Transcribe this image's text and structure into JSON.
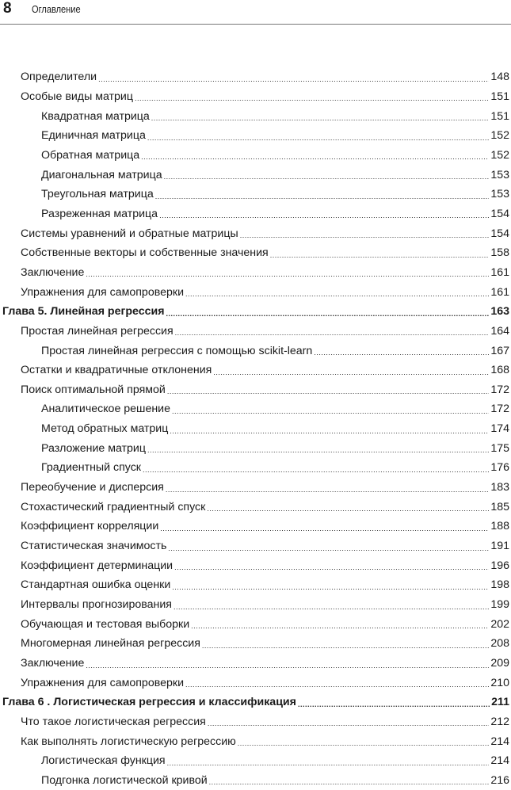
{
  "header": {
    "page_number": "8",
    "title": "Оглавление"
  },
  "entries": [
    {
      "level": 1,
      "title": "Определители",
      "page": "148"
    },
    {
      "level": 1,
      "title": "Особые виды матриц",
      "page": "151"
    },
    {
      "level": 2,
      "title": "Квадратная матрица",
      "page": "151"
    },
    {
      "level": 2,
      "title": "Единичная матрица",
      "page": "152"
    },
    {
      "level": 2,
      "title": "Обратная матрица",
      "page": "152"
    },
    {
      "level": 2,
      "title": "Диагональная матрица",
      "page": "153"
    },
    {
      "level": 2,
      "title": "Треугольная матрица",
      "page": "153"
    },
    {
      "level": 2,
      "title": "Разреженная матрица",
      "page": "154"
    },
    {
      "level": 1,
      "title": "Системы уравнений и обратные матрицы",
      "page": "154"
    },
    {
      "level": 1,
      "title": "Собственные векторы и собственные значения",
      "page": "158"
    },
    {
      "level": 1,
      "title": "Заключение",
      "page": "161"
    },
    {
      "level": 1,
      "title": "Упражнения для самопроверки",
      "page": "161"
    },
    {
      "level": 0,
      "title": "Глава 5. Линейная регрессия",
      "page": "163"
    },
    {
      "level": 1,
      "title": "Простая линейная регрессия",
      "page": "164"
    },
    {
      "level": 2,
      "title": "Простая линейная регрессия с помощью scikit-learn",
      "page": "167"
    },
    {
      "level": 1,
      "title": "Остатки и квадратичные отклонения",
      "page": "168"
    },
    {
      "level": 1,
      "title": "Поиск оптимальной прямой",
      "page": "172"
    },
    {
      "level": 2,
      "title": "Аналитическое решение",
      "page": "172"
    },
    {
      "level": 2,
      "title": "Метод обратных матриц",
      "page": "174"
    },
    {
      "level": 2,
      "title": "Разложение матриц",
      "page": "175"
    },
    {
      "level": 2,
      "title": "Градиентный спуск",
      "page": "176"
    },
    {
      "level": 1,
      "title": "Переобучение и дисперсия",
      "page": "183"
    },
    {
      "level": 1,
      "title": "Стохастический градиентный спуск",
      "page": "185"
    },
    {
      "level": 1,
      "title": "Коэффициент корреляции",
      "page": "188"
    },
    {
      "level": 1,
      "title": "Статистическая значимость",
      "page": "191"
    },
    {
      "level": 1,
      "title": "Коэффициент детерминации",
      "page": "196"
    },
    {
      "level": 1,
      "title": "Стандартная ошибка оценки",
      "page": "198"
    },
    {
      "level": 1,
      "title": "Интервалы прогнозирования",
      "page": "199"
    },
    {
      "level": 1,
      "title": "Обучающая и тестовая выборки",
      "page": "202"
    },
    {
      "level": 1,
      "title": "Многомерная линейная регрессия",
      "page": "208"
    },
    {
      "level": 1,
      "title": "Заключение",
      "page": "209"
    },
    {
      "level": 1,
      "title": "Упражнения для самопроверки",
      "page": "210"
    },
    {
      "level": 0,
      "title": "Глава 6 . Логистическая регрессия и классификация",
      "page": "211"
    },
    {
      "level": 1,
      "title": "Что такое логистическая регрессия",
      "page": "212"
    },
    {
      "level": 1,
      "title": "Как выполнять логистическую регрессию",
      "page": "214"
    },
    {
      "level": 2,
      "title": "Логистическая функция",
      "page": "214"
    },
    {
      "level": 2,
      "title": "Подгонка логистической кривой",
      "page": "216"
    }
  ]
}
